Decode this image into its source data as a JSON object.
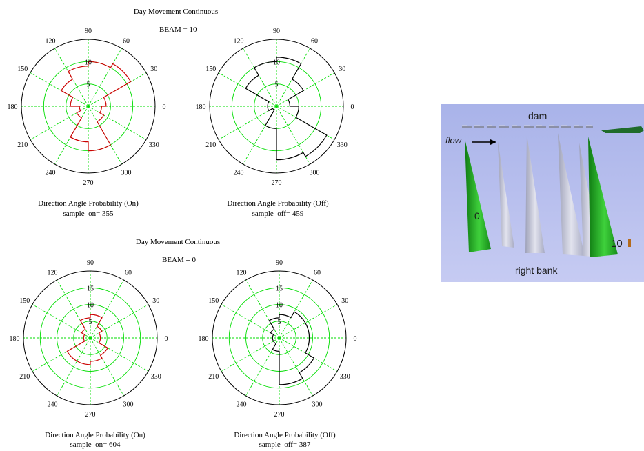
{
  "panels": [
    {
      "title": "Day Movement Continuous",
      "beam": "BEAM = 10",
      "plots": [
        {
          "xlabel": "Direction Angle Probability (On)",
          "sample": "sample_on= 355"
        },
        {
          "xlabel": "Direction Angle Probability (Off)",
          "sample": "sample_off= 459"
        }
      ]
    },
    {
      "title": "Day Movement Continuous",
      "beam": "BEAM = 0",
      "plots": [
        {
          "xlabel": "Direction Angle Probability (On)",
          "sample": "sample_on= 604"
        },
        {
          "xlabel": "Direction Angle Probability (Off)",
          "sample": "sample_off= 387"
        }
      ]
    }
  ],
  "chart_data": [
    {
      "type": "polar-histogram",
      "title": "Day Movement Continuous",
      "subtitle": "BEAM = 10",
      "xlabel": "Direction Angle Probability (On)",
      "note": "sample_on= 355",
      "radial_ticks": [
        "5",
        "10"
      ],
      "rmax": 15,
      "angle_ticks": [
        "0",
        "30",
        "60",
        "90",
        "120",
        "150",
        "180",
        "210",
        "240",
        "270",
        "300",
        "330"
      ],
      "bin_width_deg": 30,
      "bin_centers_deg": [
        15,
        45,
        75,
        105,
        135,
        165,
        195,
        225,
        255,
        285,
        315,
        345
      ],
      "values": [
        4,
        11,
        10,
        9,
        7,
        4,
        2,
        3,
        8,
        10,
        4,
        3
      ],
      "color": "#cc0000",
      "grid_color": "#00dd00"
    },
    {
      "type": "polar-histogram",
      "title": "Day Movement Continuous",
      "subtitle": "BEAM = 10",
      "xlabel": "Direction Angle Probability (Off)",
      "note": "sample_off= 459",
      "radial_ticks": [
        "5",
        "10"
      ],
      "rmax": 15,
      "angle_ticks": [
        "0",
        "30",
        "60",
        "90",
        "120",
        "150",
        "180",
        "210",
        "240",
        "270",
        "300",
        "330"
      ],
      "bin_width_deg": 30,
      "bin_centers_deg": [
        15,
        45,
        75,
        105,
        135,
        165,
        195,
        225,
        255,
        285,
        315,
        345
      ],
      "values": [
        3,
        7,
        11,
        10,
        8,
        2,
        2,
        1,
        5,
        12,
        13,
        5
      ],
      "color": "#000000",
      "grid_color": "#00dd00"
    },
    {
      "type": "polar-histogram",
      "title": "Day Movement Continuous",
      "subtitle": "BEAM = 0",
      "xlabel": "Direction Angle Probability (On)",
      "note": "sample_on= 604",
      "radial_ticks": [
        "5",
        "10",
        "15"
      ],
      "rmax": 20,
      "angle_ticks": [
        "0",
        "30",
        "60",
        "90",
        "120",
        "150",
        "180",
        "210",
        "240",
        "270",
        "300",
        "330"
      ],
      "bin_width_deg": 30,
      "bin_centers_deg": [
        15,
        45,
        75,
        105,
        135,
        165,
        195,
        225,
        255,
        285,
        315,
        345
      ],
      "values": [
        3,
        4,
        7,
        6,
        3,
        2,
        2,
        8,
        8,
        7,
        6,
        3
      ],
      "color": "#cc0000",
      "grid_color": "#00dd00"
    },
    {
      "type": "polar-histogram",
      "title": "Day Movement Continuous",
      "subtitle": "BEAM = 0",
      "xlabel": "Direction Angle Probability (Off)",
      "note": "sample_off= 387",
      "radial_ticks": [
        "5",
        "10",
        "15"
      ],
      "rmax": 20,
      "angle_ticks": [
        "0",
        "30",
        "60",
        "90",
        "120",
        "150",
        "180",
        "210",
        "240",
        "270",
        "300",
        "330"
      ],
      "bin_width_deg": 30,
      "bin_centers_deg": [
        15,
        45,
        75,
        105,
        135,
        165,
        195,
        225,
        255,
        285,
        315,
        345
      ],
      "values": [
        9,
        9,
        7,
        6,
        3,
        2,
        2,
        2,
        4,
        14,
        12,
        9
      ],
      "color": "#000000",
      "grid_color": "#00dd00"
    }
  ],
  "scene": {
    "labels": {
      "dam": "dam",
      "flow": "flow",
      "left_marker": "0",
      "right_marker": "10",
      "bank": "right bank"
    },
    "colors": {
      "beam_green": "#1fa51f",
      "beam_grey": "#c9cad7",
      "background": "#b3bbec"
    }
  }
}
